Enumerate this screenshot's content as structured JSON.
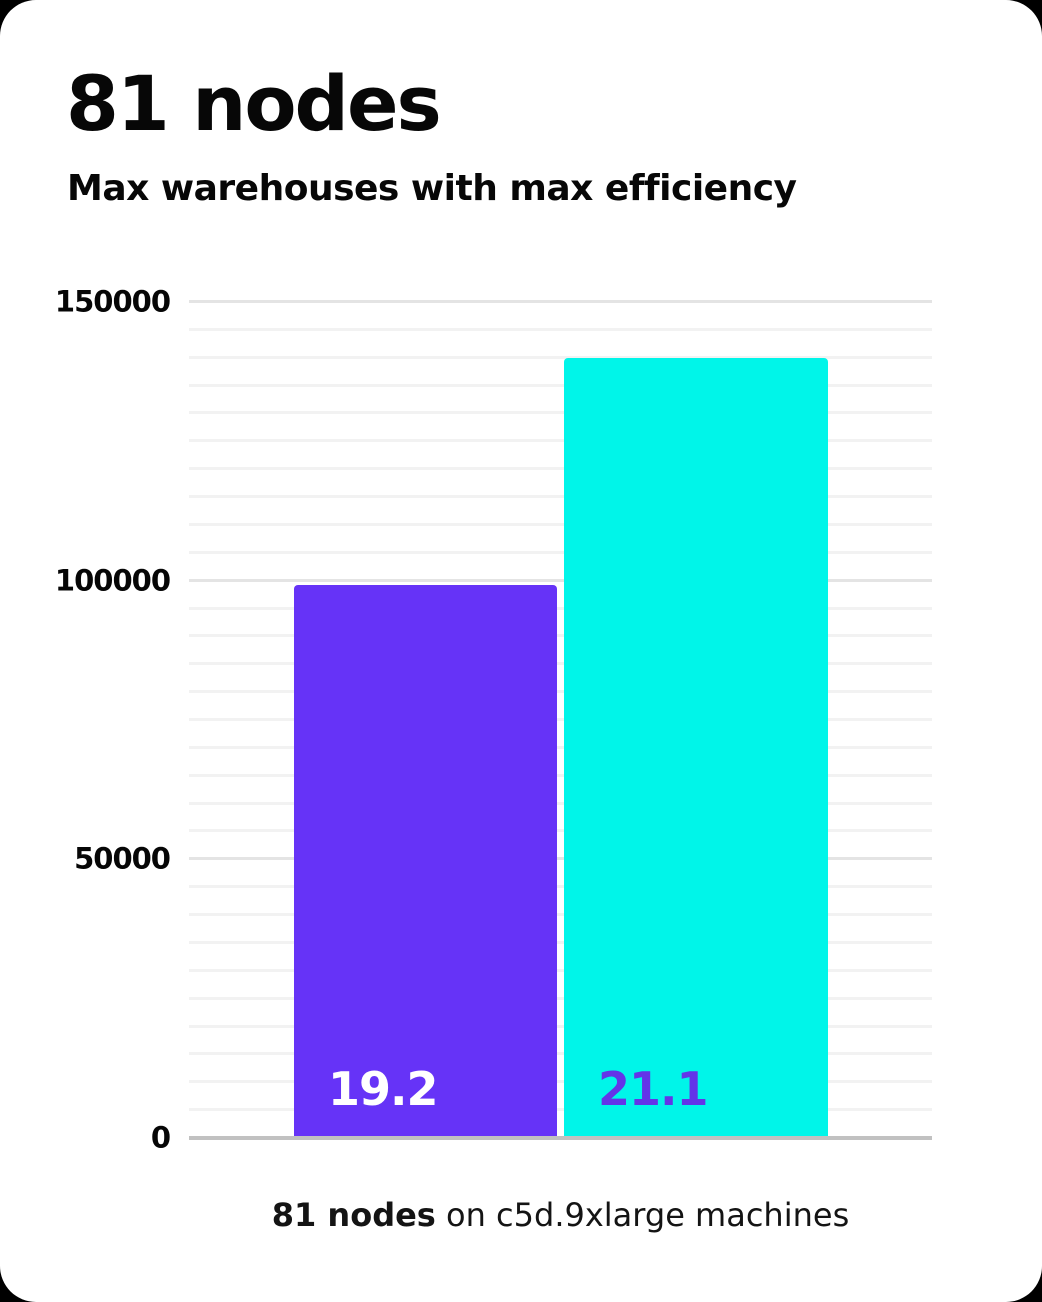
{
  "header": {
    "title": "81 nodes",
    "subtitle": "Max warehouses with max efficiency"
  },
  "caption": {
    "bold": "81 nodes",
    "rest": " on c5d.9xlarge machines"
  },
  "colors": {
    "card_background": "#ffffff",
    "page_background": "#000000",
    "bar_purple": "#6633f7",
    "bar_cyan": "#00f5e9",
    "label_on_purple": "#ffffff",
    "label_on_cyan": "#6334e8",
    "gridline_minor": "#f2f2f2",
    "gridline_major": "#e4e4e4",
    "axis_baseline": "#c1c1c1",
    "text": "#070707"
  },
  "chart_data": {
    "type": "bar",
    "title": "81 nodes",
    "subtitle": "Max warehouses with max efficiency",
    "caption": "81 nodes on c5d.9xlarge machines",
    "bars": [
      {
        "label": "19.2",
        "value": 99300,
        "color": "#6633f7",
        "label_color": "#ffffff"
      },
      {
        "label": "21.1",
        "value": 139900,
        "color": "#00f5e9",
        "label_color": "#6334e8"
      }
    ],
    "ylim": [
      0,
      150000
    ],
    "yticks": [
      150000,
      100000,
      50000,
      0
    ],
    "minor_grid_step": 5000,
    "major_grid_step": 50000,
    "grid": true,
    "legend": false,
    "xlabel": "",
    "ylabel": ""
  }
}
